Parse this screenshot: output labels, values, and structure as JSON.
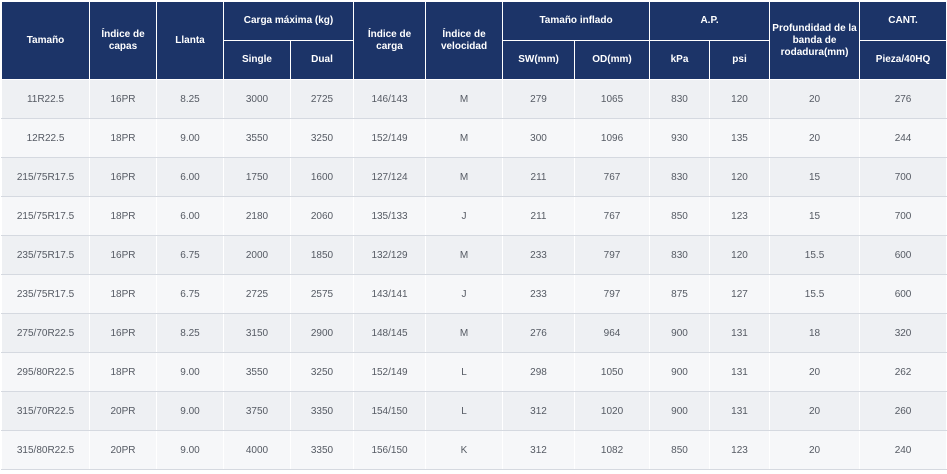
{
  "table": {
    "headers": {
      "size": "Tamaño",
      "ply": "Índice de capas",
      "rim": "Llanta",
      "max_load": "Carga máxima (kg)",
      "single": "Single",
      "dual": "Dual",
      "load_index": "Índice de carga",
      "speed_index": "Índice de velocidad",
      "inflated_size": "Tamaño inflado",
      "sw": "SW(mm)",
      "od": "OD(mm)",
      "ap": "A.P.",
      "kpa": "kPa",
      "psi": "psi",
      "tread_depth": "Profundidad de la banda de rodadura(mm)",
      "qty": "CANT.",
      "qty_unit": "Pieza/40HQ"
    },
    "rows": [
      [
        "11R22.5",
        "16PR",
        "8.25",
        "3000",
        "2725",
        "146/143",
        "M",
        "279",
        "1065",
        "830",
        "120",
        "20",
        "276"
      ],
      [
        "12R22.5",
        "18PR",
        "9.00",
        "3550",
        "3250",
        "152/149",
        "M",
        "300",
        "1096",
        "930",
        "135",
        "20",
        "244"
      ],
      [
        "215/75R17.5",
        "16PR",
        "6.00",
        "1750",
        "1600",
        "127/124",
        "M",
        "211",
        "767",
        "830",
        "120",
        "15",
        "700"
      ],
      [
        "215/75R17.5",
        "18PR",
        "6.00",
        "2180",
        "2060",
        "135/133",
        "J",
        "211",
        "767",
        "850",
        "123",
        "15",
        "700"
      ],
      [
        "235/75R17.5",
        "16PR",
        "6.75",
        "2000",
        "1850",
        "132/129",
        "M",
        "233",
        "797",
        "830",
        "120",
        "15.5",
        "600"
      ],
      [
        "235/75R17.5",
        "18PR",
        "6.75",
        "2725",
        "2575",
        "143/141",
        "J",
        "233",
        "797",
        "875",
        "127",
        "15.5",
        "600"
      ],
      [
        "275/70R22.5",
        "16PR",
        "8.25",
        "3150",
        "2900",
        "148/145",
        "M",
        "276",
        "964",
        "900",
        "131",
        "18",
        "320"
      ],
      [
        "295/80R22.5",
        "18PR",
        "9.00",
        "3550",
        "3250",
        "152/149",
        "L",
        "298",
        "1050",
        "900",
        "131",
        "20",
        "262"
      ],
      [
        "315/70R22.5",
        "20PR",
        "9.00",
        "3750",
        "3350",
        "154/150",
        "L",
        "312",
        "1020",
        "900",
        "131",
        "20",
        "260"
      ],
      [
        "315/80R22.5",
        "20PR",
        "9.00",
        "4000",
        "3350",
        "156/150",
        "K",
        "312",
        "1082",
        "850",
        "123",
        "20",
        "240"
      ]
    ]
  }
}
